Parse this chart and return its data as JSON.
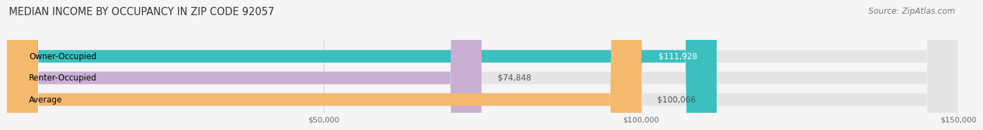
{
  "title": "MEDIAN INCOME BY OCCUPANCY IN ZIP CODE 92057",
  "source": "Source: ZipAtlas.com",
  "categories": [
    "Owner-Occupied",
    "Renter-Occupied",
    "Average"
  ],
  "values": [
    111928,
    74848,
    100066
  ],
  "labels": [
    "$111,928",
    "$74,848",
    "$100,066"
  ],
  "bar_colors": [
    "#3bbfbf",
    "#c9afd4",
    "#f5b96e"
  ],
  "bar_bg_color": "#e4e4e4",
  "xlim": [
    0,
    150000
  ],
  "xticks": [
    50000,
    100000,
    150000
  ],
  "xticklabels": [
    "$50,000",
    "$100,000",
    "$150,000"
  ],
  "title_fontsize": 10.5,
  "source_fontsize": 8.5,
  "label_fontsize": 8.5,
  "cat_fontsize": 8.5,
  "tick_fontsize": 8,
  "bar_height": 0.58,
  "background_color": "#f5f5f5",
  "label_color_inside": "#ffffff",
  "label_color_outside": "#555555"
}
